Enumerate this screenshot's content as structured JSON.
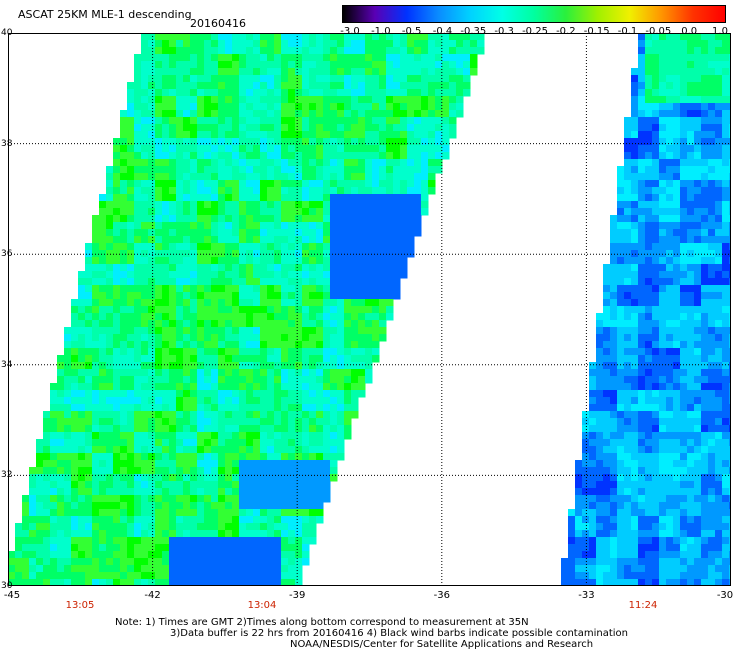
{
  "header": {
    "title": "ASCAT 25KM MLE-1 descending",
    "date": "20160416"
  },
  "colorbar": {
    "tick_labels": [
      "-3.0",
      "-1.0",
      "-0.5",
      "-0.4",
      "-0.35",
      "-0.3",
      "-0.25",
      "-0.2",
      "-0.15",
      "-0.1",
      "-0.05",
      "0.0",
      "1.0"
    ],
    "colors": [
      "#000000",
      "#5a00b4",
      "#0032ff",
      "#0a8cff",
      "#00d2ff",
      "#00ffe6",
      "#00ffa0",
      "#2af03c",
      "#a0f000",
      "#f0f000",
      "#ff9600",
      "#ff3200",
      "#ff0000"
    ]
  },
  "map": {
    "lat_labels": [
      "40",
      "38",
      "36",
      "34",
      "32",
      "30"
    ],
    "lon_labels": [
      "-45",
      "-42",
      "-39",
      "-36",
      "-33",
      "-30"
    ],
    "lat_range": [
      30,
      40
    ],
    "lon_range": [
      -45,
      -30
    ]
  },
  "times": [
    "13:05",
    "13:04",
    "11:24"
  ],
  "footer": {
    "note1": "Note: 1) Times are GMT 2)Times along bottom correspond to measurement at 35N",
    "note2": "3)Data buffer is 22 hrs from 20160416 4) Black wind barbs indicate possible contamination",
    "note3": "NOAA/NESDIS/Center for Satellite Applications and Research"
  }
}
